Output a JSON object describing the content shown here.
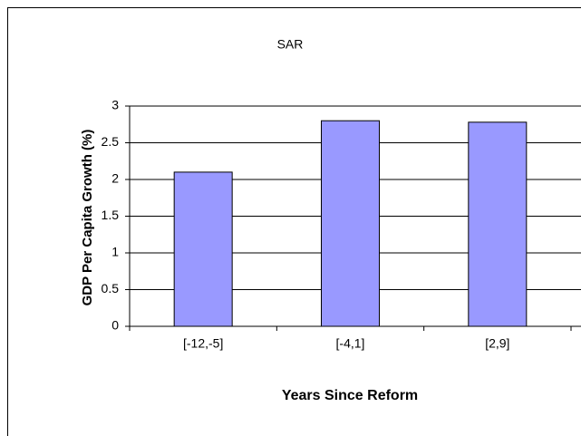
{
  "chart_data": {
    "type": "bar",
    "title": "SAR",
    "x_label": "Years Since Reform",
    "y_label": "GDP Per Capita Growth (%)",
    "categories": [
      "[-12,-5]",
      "[-4,1]",
      "[2,9]"
    ],
    "values": [
      2.1,
      2.8,
      2.78
    ],
    "color": "#9999ff",
    "ylim": [
      0,
      3
    ],
    "yticks": [
      0,
      0.5,
      1,
      1.5,
      2,
      2.5,
      3
    ],
    "grid": true
  }
}
